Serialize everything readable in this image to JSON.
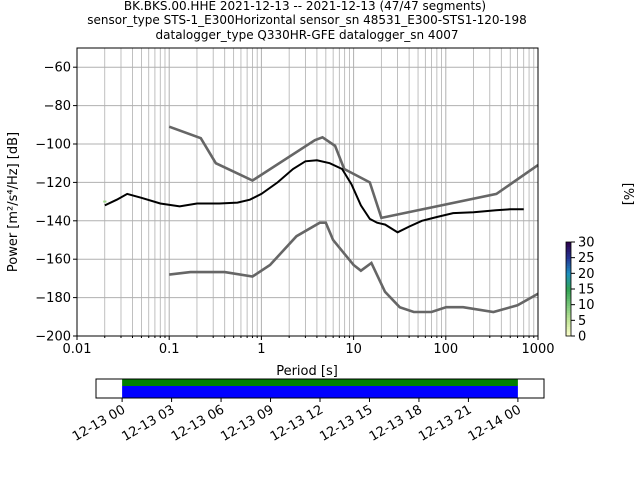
{
  "header": {
    "line1": "BK.BKS.00.HHE   2021-12-13 -- 2021-12-13  (47/47 segments)",
    "line2": "sensor_type STS-1_E300Horizontal sensor_sn 48531_E300-STS1-120-198",
    "line3": "datalogger_type Q330HR-GFE datalogger_sn 4007"
  },
  "chart_data": [
    {
      "type": "heatmap",
      "xlabel": "Period [s]",
      "ylabel": "Power [m²/s⁴/Hz] [dB]",
      "xscale": "log",
      "xlim": [
        0.01,
        1000
      ],
      "ylim": [
        -200,
        -50
      ],
      "xticks": [
        {
          "v": 0.01,
          "label": "0.01"
        },
        {
          "v": 0.1,
          "label": "0.1"
        },
        {
          "v": 1,
          "label": "1"
        },
        {
          "v": 10,
          "label": "10"
        },
        {
          "v": 100,
          "label": "100"
        },
        {
          "v": 1000,
          "label": "1000"
        }
      ],
      "yticks": [
        {
          "v": -60,
          "label": "−60"
        },
        {
          "v": -80,
          "label": "−80"
        },
        {
          "v": -100,
          "label": "−100"
        },
        {
          "v": -120,
          "label": "−120"
        },
        {
          "v": -140,
          "label": "−140"
        },
        {
          "v": -160,
          "label": "−160"
        },
        {
          "v": -180,
          "label": "−180"
        },
        {
          "v": -200,
          "label": "−200"
        }
      ],
      "grid": true,
      "noise_model_high": [
        [
          0.1,
          -91
        ],
        [
          0.22,
          -97
        ],
        [
          0.32,
          -110
        ],
        [
          0.8,
          -119
        ],
        [
          3.8,
          -98
        ],
        [
          4.6,
          -96.5
        ],
        [
          6.3,
          -101
        ],
        [
          7.9,
          -113
        ],
        [
          15,
          -120
        ],
        [
          20,
          -138.5
        ],
        [
          354,
          -126
        ],
        [
          1000,
          -111
        ]
      ],
      "noise_model_low": [
        [
          0.1,
          -168
        ],
        [
          0.17,
          -166.7
        ],
        [
          0.4,
          -166.7
        ],
        [
          0.8,
          -169
        ],
        [
          1.24,
          -163
        ],
        [
          2.4,
          -148
        ],
        [
          4.3,
          -141
        ],
        [
          5.0,
          -141
        ],
        [
          6.0,
          -150
        ],
        [
          10,
          -163
        ],
        [
          12,
          -166
        ],
        [
          15.6,
          -162
        ],
        [
          21.9,
          -177
        ],
        [
          31.6,
          -185
        ],
        [
          45,
          -187.5
        ],
        [
          70,
          -187.5
        ],
        [
          101,
          -185
        ],
        [
          154,
          -185
        ],
        [
          328,
          -187.5
        ],
        [
          600,
          -184
        ],
        [
          1000,
          -178
        ]
      ],
      "median": [
        [
          0.02,
          -132
        ],
        [
          0.027,
          -129
        ],
        [
          0.035,
          -126
        ],
        [
          0.05,
          -128
        ],
        [
          0.08,
          -131
        ],
        [
          0.13,
          -132.5
        ],
        [
          0.2,
          -131
        ],
        [
          0.35,
          -131
        ],
        [
          0.55,
          -130.5
        ],
        [
          0.75,
          -129
        ],
        [
          1.0,
          -126
        ],
        [
          1.5,
          -120
        ],
        [
          2.2,
          -113
        ],
        [
          3.0,
          -109
        ],
        [
          4.0,
          -108.5
        ],
        [
          5.5,
          -110
        ],
        [
          7.5,
          -113
        ],
        [
          9.5,
          -121
        ],
        [
          12,
          -132
        ],
        [
          15,
          -139
        ],
        [
          18,
          -141
        ],
        [
          22,
          -142
        ],
        [
          30,
          -146
        ],
        [
          40,
          -143
        ],
        [
          55,
          -140
        ],
        [
          80,
          -138
        ],
        [
          120,
          -136
        ],
        [
          200,
          -135.5
        ],
        [
          350,
          -134.5
        ],
        [
          500,
          -134
        ],
        [
          700,
          -134
        ]
      ],
      "spread_upper": [
        [
          0.02,
          -130
        ],
        [
          0.03,
          -124
        ],
        [
          0.05,
          -125
        ],
        [
          0.1,
          -128
        ],
        [
          0.2,
          -127
        ],
        [
          0.35,
          -127
        ],
        [
          0.6,
          -128
        ],
        [
          1.0,
          -123
        ],
        [
          1.5,
          -118
        ],
        [
          2.2,
          -112
        ],
        [
          3.0,
          -107
        ],
        [
          4.0,
          -106
        ],
        [
          5.5,
          -107
        ],
        [
          7.5,
          -110
        ],
        [
          10,
          -118
        ],
        [
          13,
          -128
        ],
        [
          18,
          -138
        ],
        [
          25,
          -140
        ],
        [
          40,
          -138
        ],
        [
          60,
          -136
        ],
        [
          100,
          -133
        ],
        [
          200,
          -131
        ],
        [
          400,
          -129
        ],
        [
          700,
          -129
        ]
      ],
      "spread_lower": [
        [
          0.02,
          -133
        ],
        [
          0.03,
          -131
        ],
        [
          0.05,
          -134
        ],
        [
          0.1,
          -137
        ],
        [
          0.2,
          -137
        ],
        [
          0.35,
          -135
        ],
        [
          0.6,
          -134
        ],
        [
          1.0,
          -130
        ],
        [
          1.5,
          -123
        ],
        [
          2.2,
          -116
        ],
        [
          3.0,
          -112
        ],
        [
          4.0,
          -112
        ],
        [
          5.5,
          -114
        ],
        [
          7.5,
          -118
        ],
        [
          10,
          -125
        ],
        [
          13,
          -137
        ],
        [
          18,
          -147
        ],
        [
          25,
          -162
        ],
        [
          35,
          -160
        ],
        [
          50,
          -156
        ],
        [
          70,
          -154
        ],
        [
          100,
          -152
        ],
        [
          200,
          -148
        ],
        [
          400,
          -146
        ],
        [
          700,
          -145
        ]
      ],
      "colorbar": {
        "label": "[%]",
        "min": 0,
        "max": 30,
        "ticks": [
          {
            "v": 0,
            "label": "0"
          },
          {
            "v": 5,
            "label": "5"
          },
          {
            "v": 10,
            "label": "10"
          },
          {
            "v": 15,
            "label": "15"
          },
          {
            "v": 20,
            "label": "20"
          },
          {
            "v": 25,
            "label": "25"
          },
          {
            "v": 30,
            "label": "30"
          }
        ],
        "colors": [
          "#ffffcc",
          "#c2e699",
          "#78c679",
          "#31a354",
          "#1d91c0",
          "#253494",
          "#2d004b"
        ]
      }
    },
    {
      "type": "timeline",
      "xlim": [
        "2021-12-12 22:25",
        "2021-12-14 01:35"
      ],
      "coverage": [
        "2021-12-13 00:00",
        "2021-12-14 00:00"
      ],
      "bar_colors": [
        "#008000",
        "#0000ff"
      ],
      "xticks": [
        {
          "t": "2021-12-13 00:00",
          "label": "12-13 00"
        },
        {
          "t": "2021-12-13 03:00",
          "label": "12-13 03"
        },
        {
          "t": "2021-12-13 06:00",
          "label": "12-13 06"
        },
        {
          "t": "2021-12-13 09:00",
          "label": "12-13 09"
        },
        {
          "t": "2021-12-13 12:00",
          "label": "12-13 12"
        },
        {
          "t": "2021-12-13 15:00",
          "label": "12-13 15"
        },
        {
          "t": "2021-12-13 18:00",
          "label": "12-13 18"
        },
        {
          "t": "2021-12-13 21:00",
          "label": "12-13 21"
        },
        {
          "t": "2021-12-14 00:00",
          "label": "12-14 00"
        }
      ]
    }
  ]
}
